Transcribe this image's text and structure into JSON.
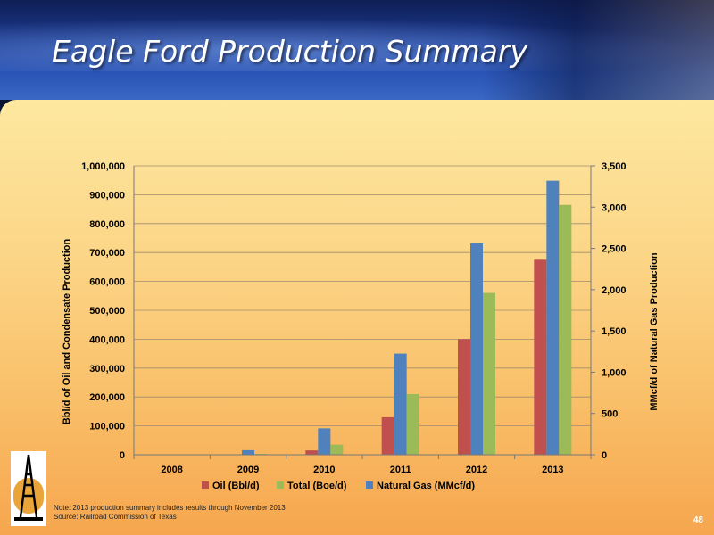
{
  "slide": {
    "title": "Eagle Ford Production Summary",
    "note": "Note: 2013 production summary includes results through November 2013",
    "source": "Source: Railroad Commission of Texas",
    "page_number": "48"
  },
  "chart_data": {
    "type": "bar",
    "categories": [
      "2008",
      "2009",
      "2010",
      "2011",
      "2012",
      "2013"
    ],
    "y_left": {
      "label": "Bbl/d of Oil and Condensate Production",
      "range": [
        0,
        1000000
      ],
      "ticks": [
        "0",
        "100,000",
        "200,000",
        "300,000",
        "400,000",
        "500,000",
        "600,000",
        "700,000",
        "800,000",
        "900,000",
        "1,000,000"
      ]
    },
    "y_right": {
      "label": "MMcf/d of Natural Gas Production",
      "range": [
        0,
        3500
      ],
      "ticks": [
        "0",
        "500",
        "1,000",
        "1,500",
        "2,000",
        "2,500",
        "3,000",
        "3,500"
      ]
    },
    "grid": true,
    "legend_position": "bottom",
    "series": [
      {
        "name": "Oil (Bbl/d)",
        "axis": "left",
        "color": "#c0504d",
        "values": [
          0,
          1000,
          15000,
          130000,
          400000,
          675000
        ]
      },
      {
        "name": "Natural Gas (MMcf/d)",
        "axis": "right",
        "color": "#4f81bd",
        "values": [
          0,
          55,
          320,
          1225,
          2560,
          3320
        ]
      },
      {
        "name": "Total (Boe/d)",
        "axis": "left",
        "color": "#9bbb59",
        "values": [
          0,
          3000,
          35000,
          210000,
          560000,
          865000
        ]
      }
    ],
    "legend_order": [
      "Oil (Bbl/d)",
      "Total (Boe/d)",
      "Natural Gas (MMcf/d)"
    ]
  }
}
